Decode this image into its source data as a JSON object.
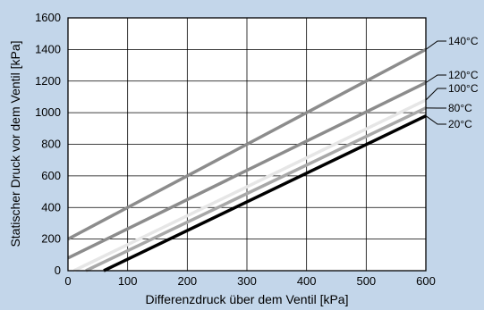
{
  "chart_data": {
    "type": "line",
    "title": "",
    "xlabel": "Differenzdruck über dem Ventil [kPa]",
    "ylabel": "Statischer Druck vor dem Ventil [kPa]",
    "xlim": [
      0,
      600
    ],
    "ylim": [
      0,
      1600
    ],
    "x_ticks": [
      0,
      100,
      200,
      300,
      400,
      500,
      600
    ],
    "y_ticks": [
      0,
      200,
      400,
      600,
      800,
      1000,
      1200,
      1400,
      1600
    ],
    "grid": true,
    "series": [
      {
        "name": "140°C",
        "color": "#8c8c8c",
        "x": [
          0,
          600
        ],
        "y": [
          200,
          1400
        ]
      },
      {
        "name": "120°C",
        "color": "#8c8c8c",
        "x": [
          0,
          600
        ],
        "y": [
          80,
          1190
        ]
      },
      {
        "name": "100°C",
        "color": "#e6e6e6",
        "x": [
          10,
          600
        ],
        "y": [
          0,
          1080
        ]
      },
      {
        "name": "80°C",
        "color": "#a8a8a8",
        "x": [
          30,
          600
        ],
        "y": [
          0,
          1030
        ]
      },
      {
        "name": "20°C",
        "color": "#000000",
        "x": [
          60,
          600
        ],
        "y": [
          0,
          980
        ]
      }
    ]
  }
}
